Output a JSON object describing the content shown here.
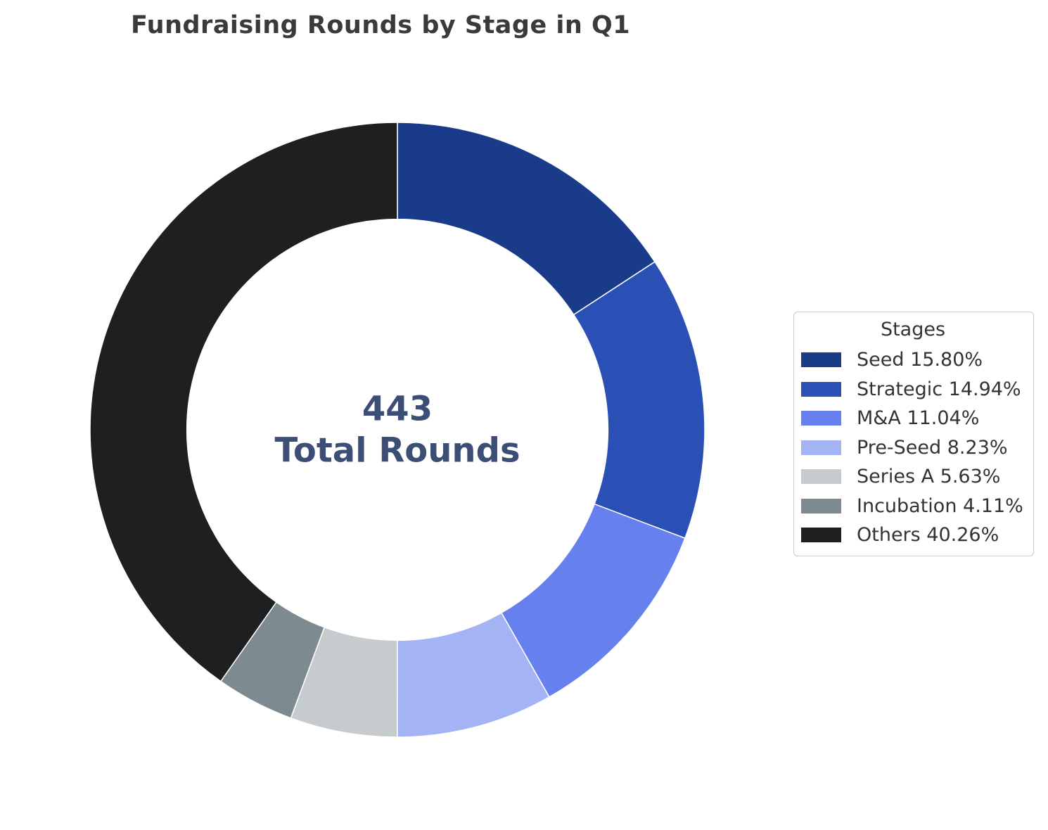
{
  "chart_data": {
    "type": "pie",
    "variant": "donut",
    "title": "Fundraising Rounds by Stage in Q1",
    "legend_title": "Stages",
    "legend_position": "right",
    "center": {
      "value": "443",
      "label": "Total Rounds"
    },
    "start_angle": "top",
    "direction": "clockwise",
    "inner_radius_ratio": 0.685,
    "segments": [
      {
        "label": "Seed",
        "percent": 15.8,
        "display": "Seed 15.80%",
        "color": "#1a3a8a"
      },
      {
        "label": "Strategic",
        "percent": 14.94,
        "display": "Strategic 14.94%",
        "color": "#2b50b5"
      },
      {
        "label": "M&A",
        "percent": 11.04,
        "display": "M&A 11.04%",
        "color": "#6680ee"
      },
      {
        "label": "Pre-Seed",
        "percent": 8.23,
        "display": "Pre-Seed 8.23%",
        "color": "#a4b3f4"
      },
      {
        "label": "Series A",
        "percent": 5.63,
        "display": "Series A 5.63%",
        "color": "#c6cbce"
      },
      {
        "label": "Incubation",
        "percent": 4.11,
        "display": "Incubation 4.11%",
        "color": "#7d8b90"
      },
      {
        "label": "Others",
        "percent": 40.26,
        "display": "Others 40.26%",
        "color": "#1d1f21"
      }
    ]
  },
  "styles": {
    "title_color": "#3a3a3a",
    "center_text_color": "#3c4e76",
    "legend_text_color": "#333333",
    "legend_border_color": "#cccccc",
    "wedge_edge_color": "#ffffff",
    "background_color": "#ffffff"
  }
}
